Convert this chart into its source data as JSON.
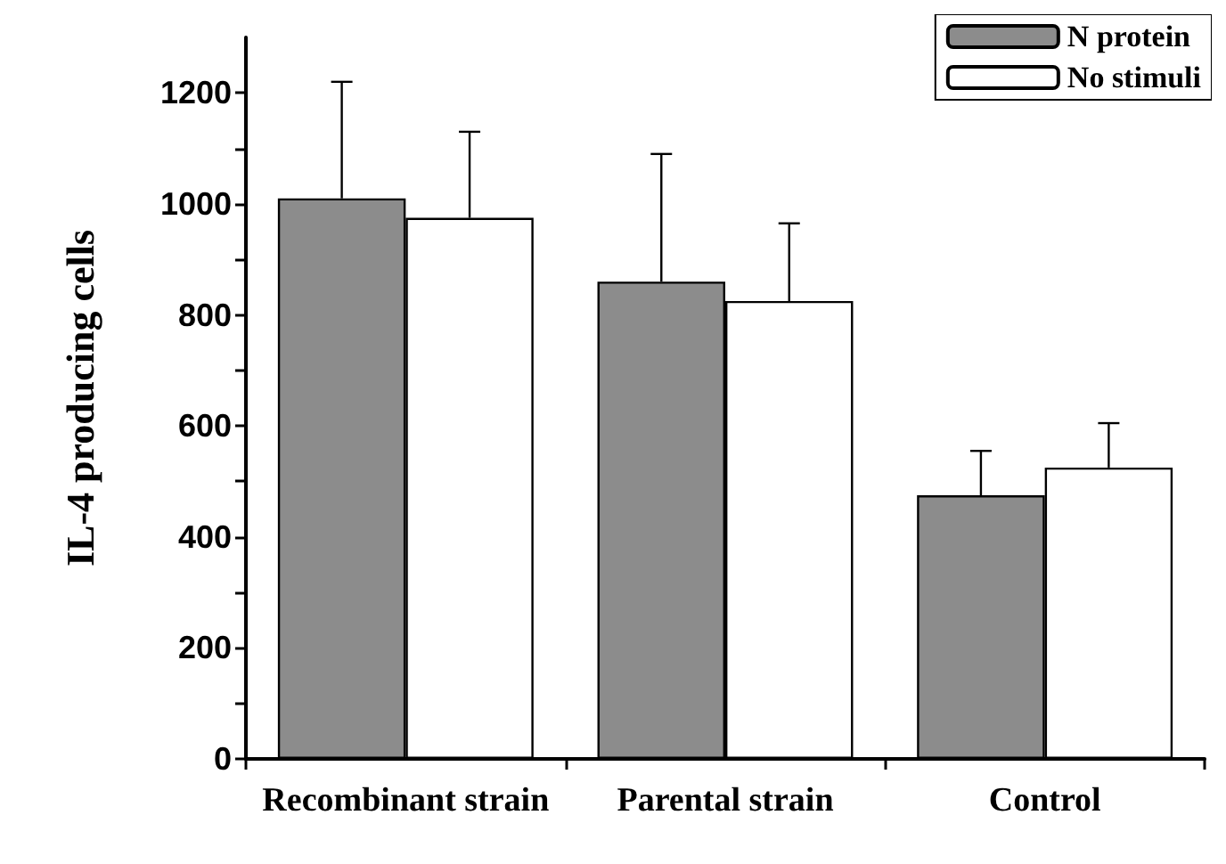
{
  "chart_data": {
    "type": "bar",
    "ylabel": "IL-4 producing cells",
    "categories": [
      "Recombinant strain",
      "Parental strain",
      "Control"
    ],
    "series": [
      {
        "name": "N protein",
        "color": "#8c8c8c",
        "values": [
          1010,
          860,
          475
        ],
        "errors": [
          [
            1010,
            1220
          ],
          [
            860,
            1090
          ],
          [
            475,
            555
          ]
        ]
      },
      {
        "name": "No stimuli",
        "color": "#ffffff",
        "values": [
          975,
          825,
          525
        ],
        "errors": [
          [
            975,
            1130
          ],
          [
            825,
            965
          ],
          [
            525,
            605
          ]
        ]
      }
    ],
    "ylim": [
      0,
      1300
    ],
    "yticks": [
      0,
      {
        "value": 100,
        "label": null
      },
      200,
      {
        "value": 300,
        "label": null
      },
      400,
      {
        "value": 500,
        "label": null
      },
      600,
      {
        "value": 700,
        "label": null
      },
      800,
      {
        "value": 900,
        "label": null
      },
      1000,
      {
        "value": 1100,
        "label": null
      },
      1200
    ],
    "legend": "top right",
    "grid": false
  }
}
